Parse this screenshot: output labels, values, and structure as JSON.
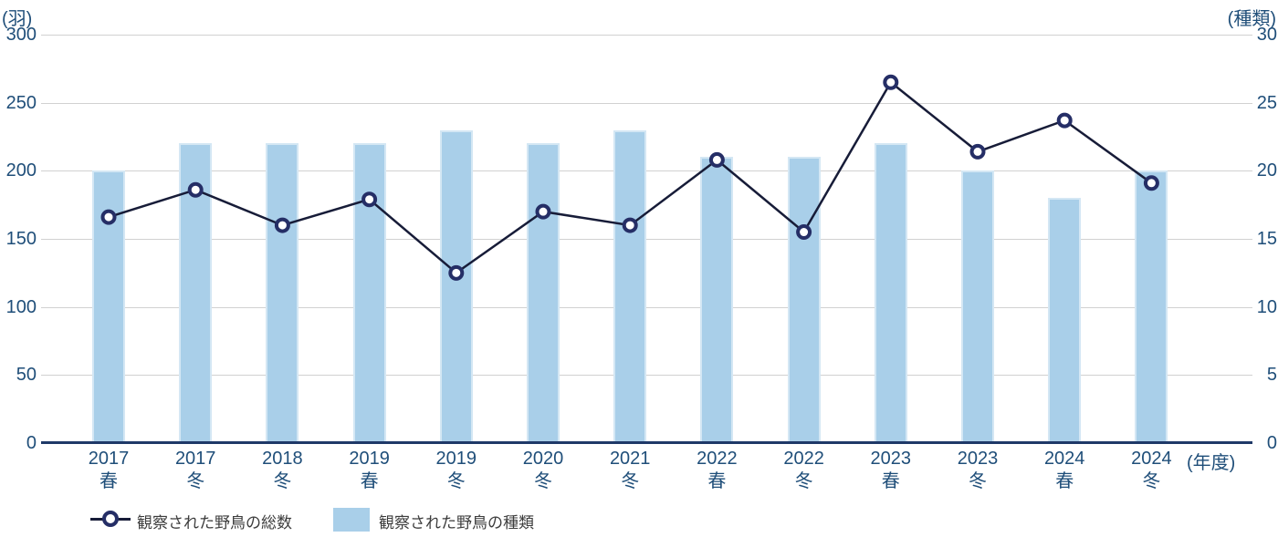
{
  "chart_data": {
    "type": "combo",
    "title": "",
    "categories": [
      {
        "year": "2017",
        "season": "春"
      },
      {
        "year": "2017",
        "season": "冬"
      },
      {
        "year": "2018",
        "season": "冬"
      },
      {
        "year": "2019",
        "season": "春"
      },
      {
        "year": "2019",
        "season": "冬"
      },
      {
        "year": "2020",
        "season": "冬"
      },
      {
        "year": "2021",
        "season": "冬"
      },
      {
        "year": "2022",
        "season": "春"
      },
      {
        "year": "2022",
        "season": "冬"
      },
      {
        "year": "2023",
        "season": "春"
      },
      {
        "year": "2023",
        "season": "冬"
      },
      {
        "year": "2024",
        "season": "春"
      },
      {
        "year": "2024",
        "season": "冬"
      }
    ],
    "series": [
      {
        "name": "観察された野鳥の総数",
        "type": "line",
        "axis": "left",
        "values": [
          166,
          186,
          160,
          179,
          125,
          170,
          160,
          208,
          155,
          265,
          214,
          237,
          191
        ],
        "color": "#171c38",
        "marker": "open-circle",
        "marker_color": "#252e66"
      },
      {
        "name": "観察された野鳥の種類",
        "type": "bar",
        "axis": "right",
        "values": [
          20,
          22,
          22,
          22,
          23,
          22,
          23,
          21,
          21,
          22,
          20,
          18,
          20
        ],
        "color": "#a9cfe9"
      }
    ],
    "left_axis": {
      "unit": "(羽)",
      "min": 0,
      "max": 300,
      "step": 50,
      "ticks": [
        "300",
        "250",
        "200",
        "150",
        "100",
        "50",
        "0"
      ]
    },
    "right_axis": {
      "unit": "(種類)",
      "min": 0,
      "max": 30,
      "step": 5,
      "ticks": [
        "30",
        "25",
        "20",
        "15",
        "10",
        "5",
        "0"
      ]
    },
    "x_axis": {
      "unit": "(年度)"
    },
    "grid": true,
    "legend_position": "bottom-left",
    "colors": {
      "axis_label": "#1f4e79",
      "grid": "#d1d1d1",
      "baseline": "#1f3968",
      "legend_text": "#3c3c3c",
      "background": "#ffffff"
    }
  }
}
